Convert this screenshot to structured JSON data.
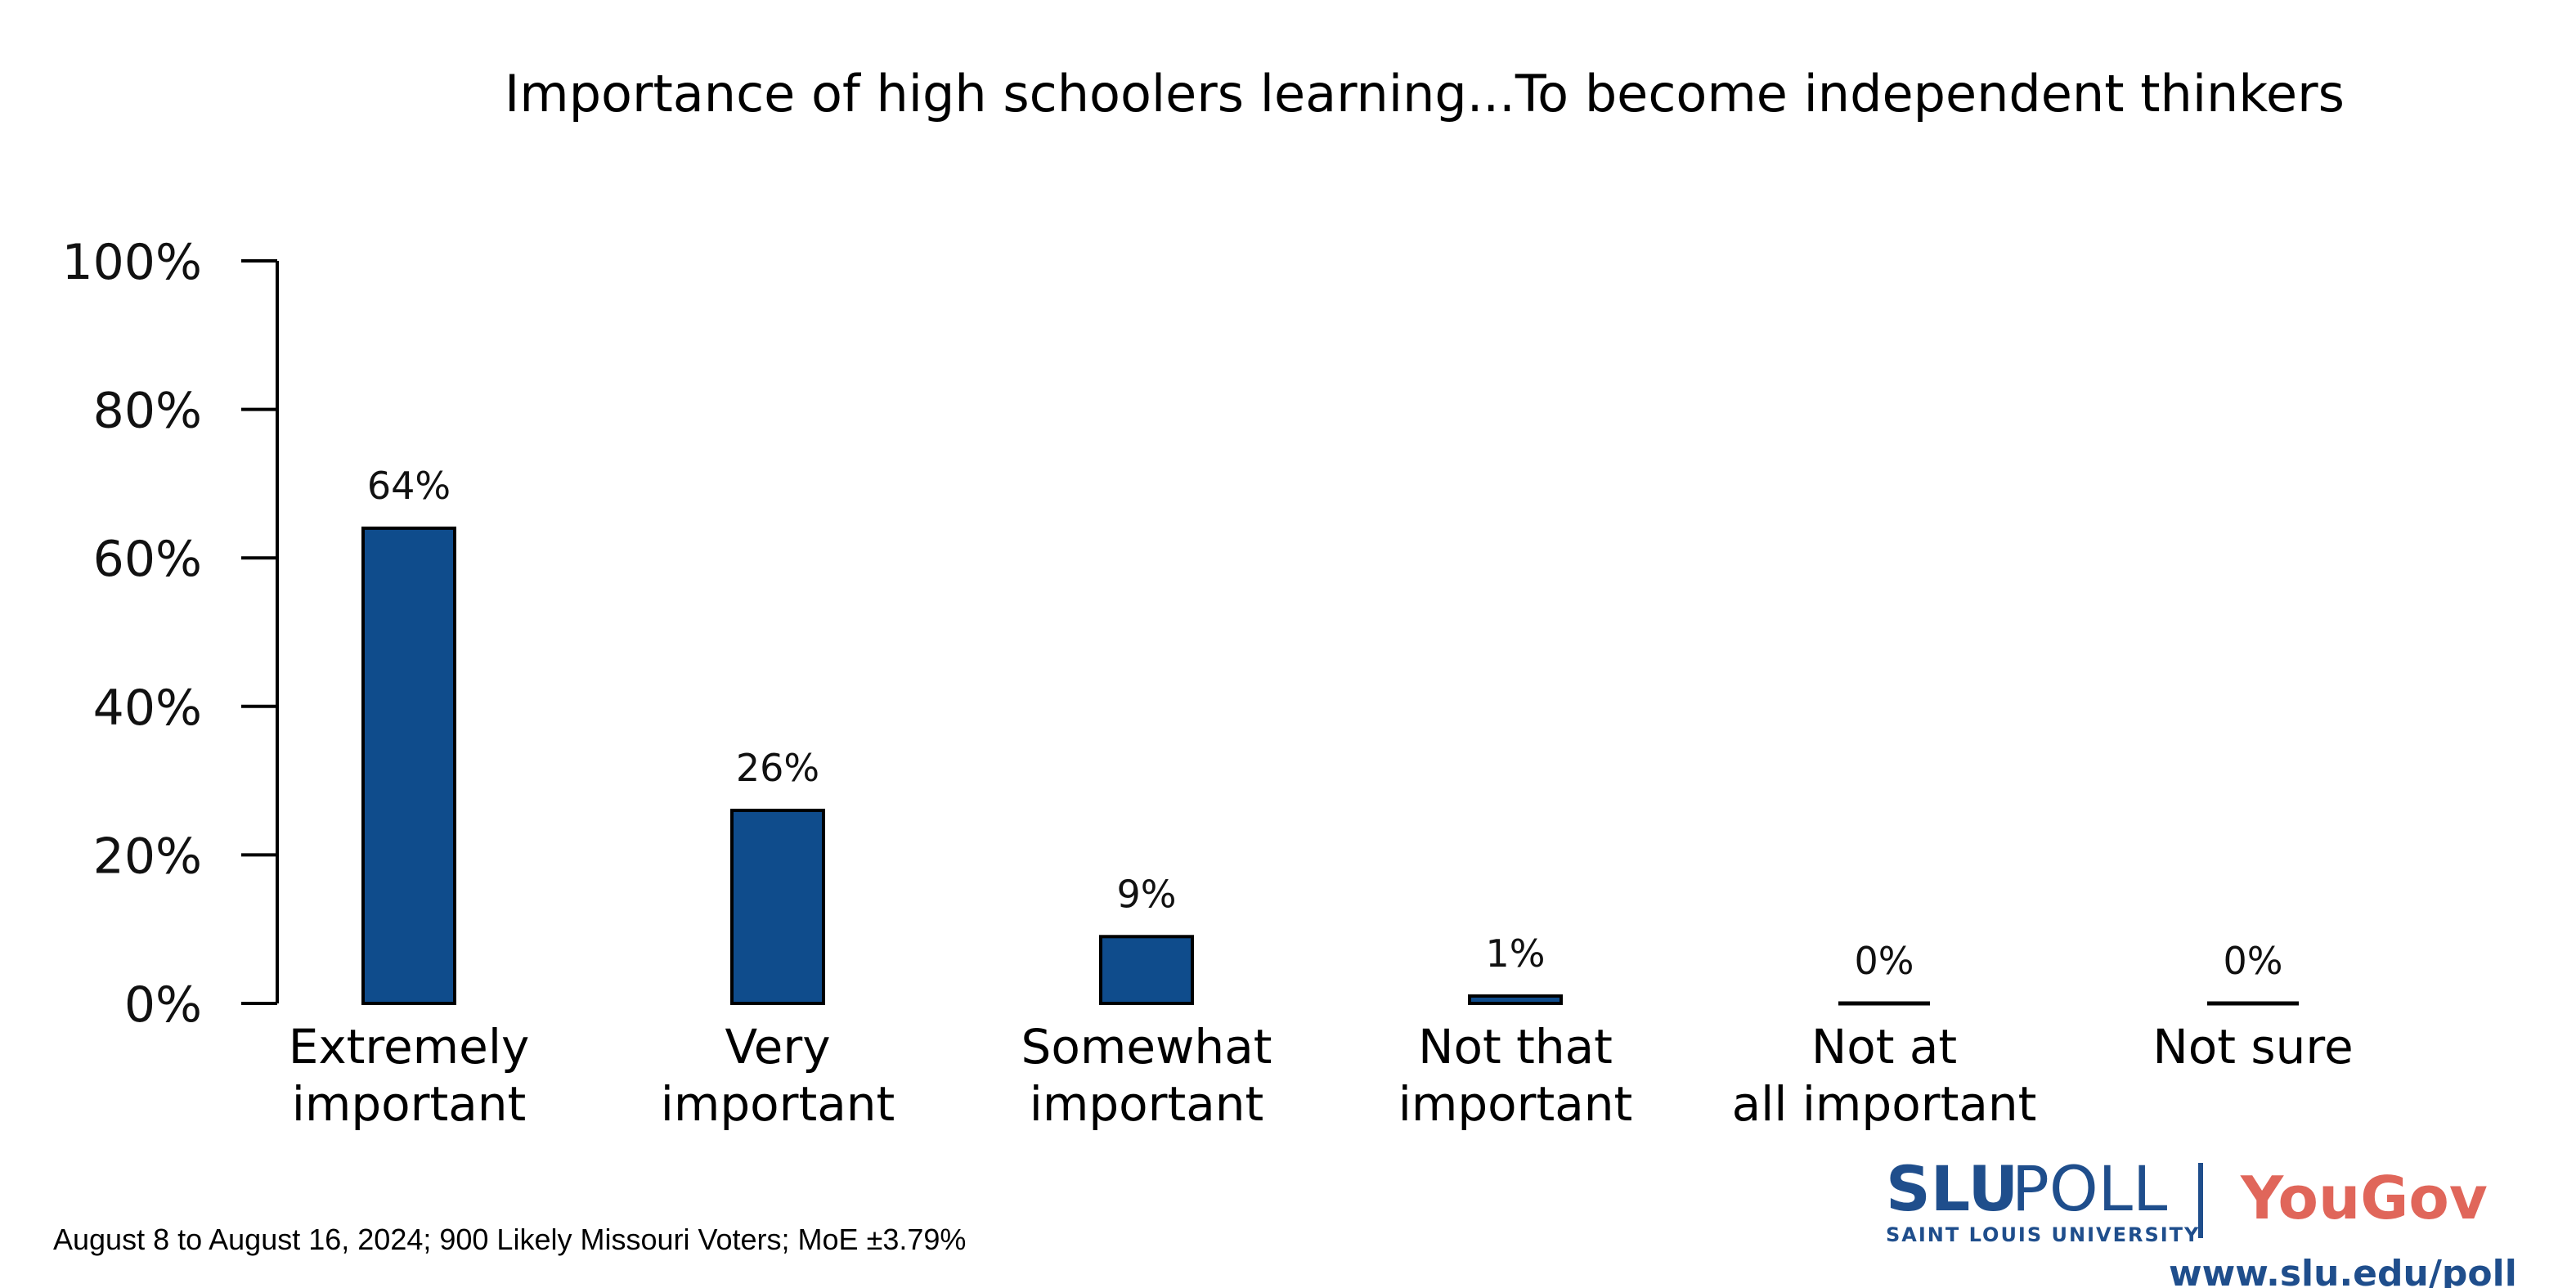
{
  "chart_data": {
    "type": "bar",
    "title": "Importance of high schoolers learning...To become independent thinkers",
    "categories": [
      [
        "Extremely",
        "important"
      ],
      [
        "Very",
        "important"
      ],
      [
        "Somewhat",
        "important"
      ],
      [
        "Not that",
        "important"
      ],
      [
        "Not at",
        "all important"
      ],
      [
        "Not sure"
      ]
    ],
    "values": [
      64,
      26,
      9,
      1,
      0,
      0
    ],
    "value_labels": [
      "64%",
      "26%",
      "9%",
      "1%",
      "0%",
      "0%"
    ],
    "ylim": [
      0,
      100
    ],
    "yticks": [
      0,
      20,
      40,
      60,
      80,
      100
    ],
    "ytick_labels": [
      "0%",
      "20%",
      "40%",
      "60%",
      "80%",
      "100%"
    ],
    "xlabel": "",
    "ylabel": "",
    "grid": false,
    "bar_color": "#0f4c8c"
  },
  "footnote": "August 8 to August 16, 2024; 900 Likely Missouri Voters; MoE ±3.79%",
  "logo": {
    "slu_bold": "SLU",
    "slu_poll": "POLL",
    "slu_sub": "SAINT LOUIS UNIVERSITY",
    "yougov": "YouGov",
    "url": "www.slu.edu/poll",
    "slu_color": "#1f4e8c",
    "yougov_color": "#e0665a"
  }
}
